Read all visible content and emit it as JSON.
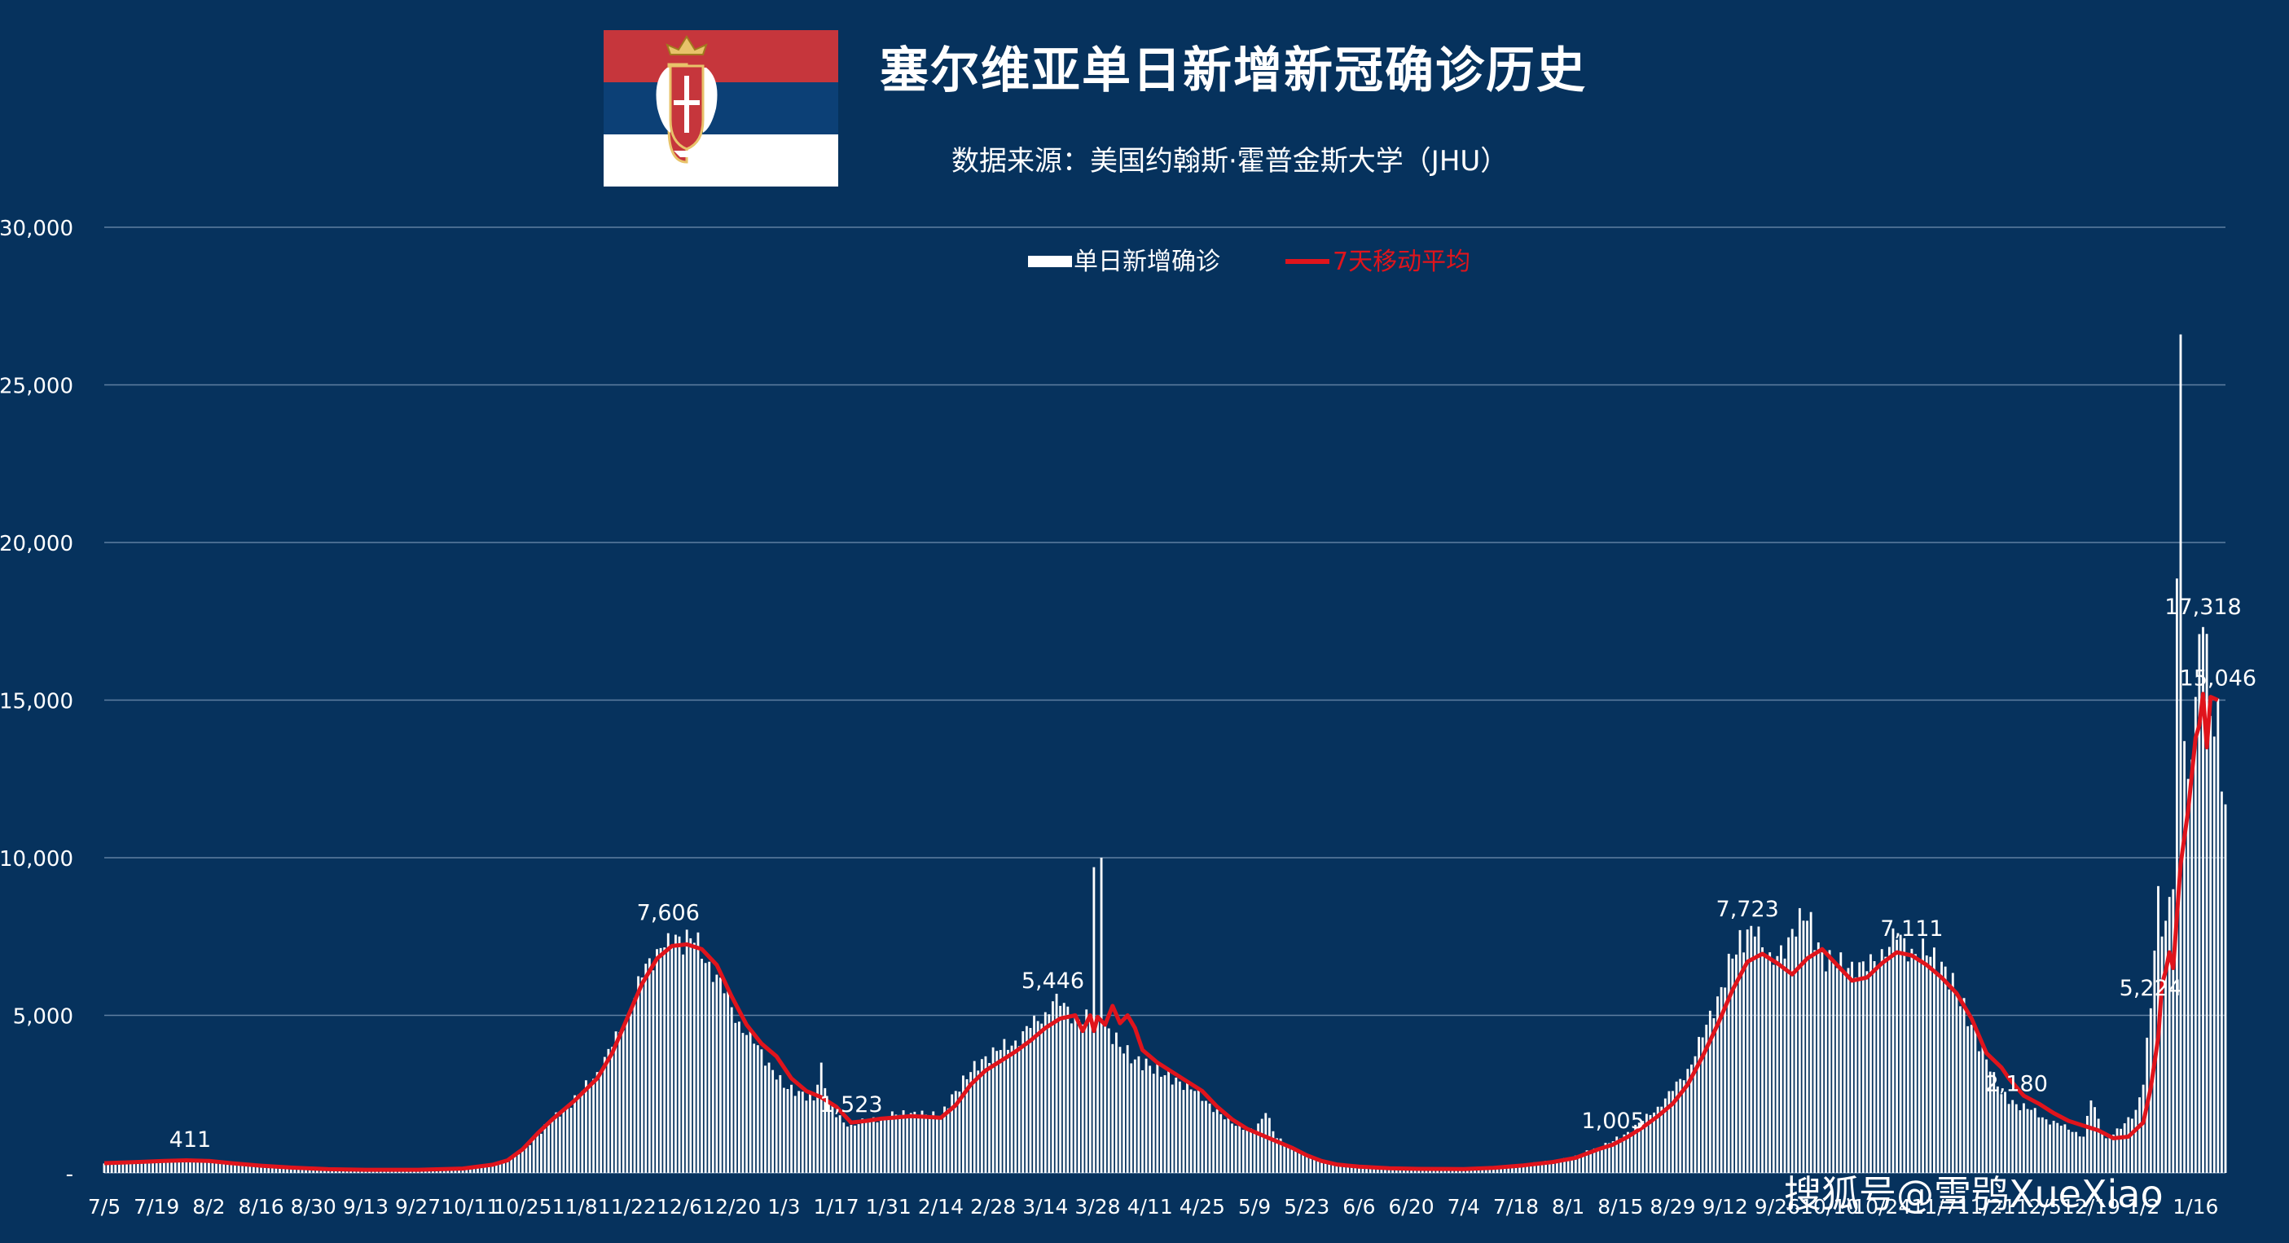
{
  "header": {
    "title": "塞尔维亚单日新增新冠确诊历史",
    "subtitle": "数据来源：美国约翰斯·霍普金斯大学（JHU）",
    "flag": "serbia-flag"
  },
  "legend": {
    "bars_label": "单日新增确诊",
    "line_label": "7天移动平均"
  },
  "watermark": "搜狐号@雪鸮XueXiao",
  "colors": {
    "background": "#06325d",
    "bars": "#ffffff",
    "moving_average": "#e0141c",
    "gridlines": "#5f7fa1"
  },
  "chart_data": {
    "type": "bar",
    "title": "塞尔维亚单日新增新冠确诊历史",
    "xlabel": "",
    "ylabel": "",
    "ylim": [
      0,
      30000
    ],
    "grid": true,
    "legend_position": "top-center",
    "y_ticks": [
      "-",
      "5,000",
      "10,000",
      "15,000",
      "20,000",
      "25,000",
      "30,000"
    ],
    "y_tick_values": [
      0,
      5000,
      10000,
      15000,
      20000,
      25000,
      30000
    ],
    "x_ticks": [
      "7/5",
      "7/19",
      "8/2",
      "8/16",
      "8/30",
      "9/13",
      "9/27",
      "10/11",
      "10/25",
      "11/8",
      "11/22",
      "12/6",
      "12/20",
      "1/3",
      "1/17",
      "1/31",
      "2/14",
      "2/28",
      "3/14",
      "3/28",
      "4/11",
      "4/25",
      "5/9",
      "5/23",
      "6/6",
      "6/20",
      "7/4",
      "7/18",
      "8/1",
      "8/15",
      "8/29",
      "9/12",
      "9/26",
      "10/10",
      "10/24",
      "11/7",
      "11/21",
      "12/5",
      "12/19",
      "1/2",
      "1/16"
    ],
    "x_tick_days": [
      0,
      14,
      28,
      42,
      56,
      70,
      84,
      98,
      112,
      126,
      140,
      154,
      168,
      182,
      196,
      210,
      224,
      238,
      252,
      266,
      280,
      294,
      308,
      322,
      336,
      350,
      364,
      378,
      392,
      406,
      420,
      434,
      448,
      462,
      476,
      490,
      504,
      518,
      532,
      546,
      560
    ],
    "x_range_days": [
      0,
      568
    ],
    "series": [
      {
        "name": "单日新增确诊",
        "kind": "bar",
        "points": [
          [
            0,
            300
          ],
          [
            5,
            320
          ],
          [
            10,
            360
          ],
          [
            15,
            390
          ],
          [
            20,
            400
          ],
          [
            23,
            411
          ],
          [
            26,
            380
          ],
          [
            30,
            330
          ],
          [
            35,
            280
          ],
          [
            40,
            240
          ],
          [
            45,
            200
          ],
          [
            50,
            160
          ],
          [
            55,
            130
          ],
          [
            60,
            110
          ],
          [
            65,
            95
          ],
          [
            70,
            100
          ],
          [
            75,
            105
          ],
          [
            80,
            100
          ],
          [
            85,
            95
          ],
          [
            90,
            110
          ],
          [
            95,
            140
          ],
          [
            100,
            200
          ],
          [
            104,
            280
          ],
          [
            108,
            420
          ],
          [
            112,
            700
          ],
          [
            116,
            1200
          ],
          [
            120,
            1700
          ],
          [
            124,
            2100
          ],
          [
            128,
            2600
          ],
          [
            132,
            3200
          ],
          [
            136,
            4000
          ],
          [
            140,
            5000
          ],
          [
            144,
            6200
          ],
          [
            148,
            7100
          ],
          [
            151,
            7606
          ],
          [
            154,
            7500
          ],
          [
            158,
            7300
          ],
          [
            162,
            6700
          ],
          [
            166,
            5700
          ],
          [
            170,
            4800
          ],
          [
            174,
            4100
          ],
          [
            178,
            3500
          ],
          [
            182,
            2700
          ],
          [
            186,
            2600
          ],
          [
            190,
            2300
          ],
          [
            192,
            3500
          ],
          [
            194,
            2200
          ],
          [
            198,
            1600
          ],
          [
            200,
            1523
          ],
          [
            204,
            1650
          ],
          [
            208,
            1750
          ],
          [
            212,
            1850
          ],
          [
            216,
            1900
          ],
          [
            220,
            1850
          ],
          [
            224,
            1800
          ],
          [
            228,
            2600
          ],
          [
            232,
            3200
          ],
          [
            236,
            3700
          ],
          [
            240,
            3900
          ],
          [
            244,
            4200
          ],
          [
            248,
            4600
          ],
          [
            252,
            5100
          ],
          [
            254,
            5446
          ],
          [
            256,
            5300
          ],
          [
            260,
            5000
          ],
          [
            264,
            4800
          ],
          [
            265,
            9700
          ],
          [
            266,
            4800
          ],
          [
            267,
            10000
          ],
          [
            268,
            4700
          ],
          [
            272,
            4000
          ],
          [
            276,
            3600
          ],
          [
            280,
            3400
          ],
          [
            284,
            3100
          ],
          [
            288,
            2900
          ],
          [
            292,
            2600
          ],
          [
            296,
            2200
          ],
          [
            300,
            1700
          ],
          [
            304,
            1500
          ],
          [
            308,
            1300
          ],
          [
            311,
            1900
          ],
          [
            314,
            1100
          ],
          [
            318,
            800
          ],
          [
            322,
            550
          ],
          [
            326,
            380
          ],
          [
            330,
            270
          ],
          [
            336,
            200
          ],
          [
            340,
            170
          ],
          [
            344,
            150
          ],
          [
            350,
            130
          ],
          [
            356,
            120
          ],
          [
            364,
            140
          ],
          [
            370,
            180
          ],
          [
            378,
            260
          ],
          [
            384,
            330
          ],
          [
            390,
            420
          ],
          [
            394,
            550
          ],
          [
            400,
            800
          ],
          [
            404,
            1005
          ],
          [
            408,
            1300
          ],
          [
            412,
            1650
          ],
          [
            416,
            2100
          ],
          [
            420,
            2600
          ],
          [
            424,
            3300
          ],
          [
            428,
            4300
          ],
          [
            432,
            5600
          ],
          [
            436,
            6800
          ],
          [
            440,
            7723
          ],
          [
            442,
            7500
          ],
          [
            446,
            7000
          ],
          [
            450,
            6800
          ],
          [
            454,
            8400
          ],
          [
            456,
            8000
          ],
          [
            460,
            7000
          ],
          [
            464,
            6500
          ],
          [
            468,
            6700
          ],
          [
            472,
            6400
          ],
          [
            476,
            7100
          ],
          [
            480,
            7400
          ],
          [
            484,
            7111
          ],
          [
            488,
            6900
          ],
          [
            492,
            6700
          ],
          [
            496,
            5700
          ],
          [
            500,
            4700
          ],
          [
            504,
            3600
          ],
          [
            506,
            3200
          ],
          [
            508,
            2500
          ],
          [
            512,
            2180
          ],
          [
            516,
            2000
          ],
          [
            520,
            1700
          ],
          [
            524,
            1500
          ],
          [
            528,
            1300
          ],
          [
            530,
            1150
          ],
          [
            532,
            2300
          ],
          [
            536,
            1100
          ],
          [
            540,
            1400
          ],
          [
            544,
            2000
          ],
          [
            546,
            2800
          ],
          [
            548,
            5224
          ],
          [
            550,
            9100
          ],
          [
            551,
            7500
          ],
          [
            552,
            8000
          ],
          [
            554,
            9000
          ],
          [
            556,
            26600
          ],
          [
            557,
            13700
          ],
          [
            558,
            12500
          ],
          [
            560,
            15100
          ],
          [
            562,
            17318
          ],
          [
            563,
            17100
          ],
          [
            564,
            14500
          ],
          [
            566,
            15046
          ],
          [
            567,
            12100
          ]
        ]
      },
      {
        "name": "7天移动平均",
        "kind": "line",
        "points": [
          [
            0,
            310
          ],
          [
            8,
            340
          ],
          [
            16,
            380
          ],
          [
            22,
            400
          ],
          [
            28,
            380
          ],
          [
            34,
            310
          ],
          [
            42,
            230
          ],
          [
            50,
            170
          ],
          [
            60,
            120
          ],
          [
            70,
            100
          ],
          [
            84,
            100
          ],
          [
            96,
            140
          ],
          [
            104,
            260
          ],
          [
            108,
            400
          ],
          [
            112,
            750
          ],
          [
            116,
            1250
          ],
          [
            120,
            1700
          ],
          [
            126,
            2300
          ],
          [
            132,
            3000
          ],
          [
            136,
            3800
          ],
          [
            140,
            4900
          ],
          [
            144,
            6000
          ],
          [
            148,
            6800
          ],
          [
            152,
            7200
          ],
          [
            156,
            7250
          ],
          [
            160,
            7100
          ],
          [
            164,
            6600
          ],
          [
            168,
            5600
          ],
          [
            172,
            4700
          ],
          [
            176,
            4100
          ],
          [
            180,
            3700
          ],
          [
            184,
            3000
          ],
          [
            188,
            2600
          ],
          [
            192,
            2400
          ],
          [
            196,
            2100
          ],
          [
            200,
            1600
          ],
          [
            204,
            1650
          ],
          [
            208,
            1720
          ],
          [
            212,
            1760
          ],
          [
            216,
            1800
          ],
          [
            220,
            1780
          ],
          [
            224,
            1750
          ],
          [
            228,
            2150
          ],
          [
            232,
            2800
          ],
          [
            236,
            3250
          ],
          [
            240,
            3550
          ],
          [
            244,
            3850
          ],
          [
            248,
            4200
          ],
          [
            252,
            4600
          ],
          [
            256,
            4900
          ],
          [
            260,
            5000
          ],
          [
            262,
            4500
          ],
          [
            264,
            5000
          ],
          [
            265,
            4500
          ],
          [
            266,
            4950
          ],
          [
            268,
            4700
          ],
          [
            270,
            5300
          ],
          [
            272,
            4750
          ],
          [
            274,
            5000
          ],
          [
            276,
            4600
          ],
          [
            278,
            3900
          ],
          [
            282,
            3500
          ],
          [
            286,
            3200
          ],
          [
            290,
            2900
          ],
          [
            294,
            2600
          ],
          [
            298,
            2100
          ],
          [
            302,
            1700
          ],
          [
            306,
            1400
          ],
          [
            310,
            1200
          ],
          [
            314,
            1000
          ],
          [
            318,
            800
          ],
          [
            322,
            560
          ],
          [
            326,
            380
          ],
          [
            330,
            270
          ],
          [
            336,
            200
          ],
          [
            344,
            150
          ],
          [
            352,
            130
          ],
          [
            364,
            125
          ],
          [
            372,
            160
          ],
          [
            380,
            240
          ],
          [
            388,
            350
          ],
          [
            394,
            480
          ],
          [
            400,
            750
          ],
          [
            404,
            900
          ],
          [
            408,
            1150
          ],
          [
            412,
            1450
          ],
          [
            416,
            1800
          ],
          [
            420,
            2200
          ],
          [
            424,
            2800
          ],
          [
            428,
            3700
          ],
          [
            432,
            4700
          ],
          [
            436,
            5800
          ],
          [
            440,
            6700
          ],
          [
            444,
            6950
          ],
          [
            448,
            6650
          ],
          [
            452,
            6300
          ],
          [
            456,
            6800
          ],
          [
            460,
            7100
          ],
          [
            464,
            6600
          ],
          [
            468,
            6100
          ],
          [
            472,
            6200
          ],
          [
            476,
            6650
          ],
          [
            480,
            7000
          ],
          [
            484,
            6900
          ],
          [
            488,
            6600
          ],
          [
            492,
            6200
          ],
          [
            496,
            5700
          ],
          [
            500,
            4900
          ],
          [
            504,
            3800
          ],
          [
            508,
            3350
          ],
          [
            510,
            3000
          ],
          [
            514,
            2450
          ],
          [
            518,
            2200
          ],
          [
            522,
            1900
          ],
          [
            526,
            1650
          ],
          [
            530,
            1500
          ],
          [
            534,
            1350
          ],
          [
            538,
            1100
          ],
          [
            542,
            1150
          ],
          [
            546,
            1600
          ],
          [
            548,
            2700
          ],
          [
            550,
            4300
          ],
          [
            551,
            6000
          ],
          [
            552,
            6400
          ],
          [
            553,
            7000
          ],
          [
            554,
            6500
          ],
          [
            556,
            9800
          ],
          [
            558,
            11500
          ],
          [
            560,
            13800
          ],
          [
            561,
            14200
          ],
          [
            562,
            15200
          ],
          [
            563,
            13500
          ],
          [
            564,
            15100
          ],
          [
            566,
            15000
          ]
        ]
      }
    ],
    "annotations": [
      {
        "text": "411",
        "day": 23,
        "value": 411
      },
      {
        "text": "7,606",
        "day": 151,
        "value": 7606
      },
      {
        "text": "1,523",
        "day": 200,
        "value": 1523
      },
      {
        "text": "5,446",
        "day": 254,
        "value": 5446
      },
      {
        "text": "1,005",
        "day": 404,
        "value": 1005
      },
      {
        "text": "7,723",
        "day": 440,
        "value": 7723
      },
      {
        "text": "7,111",
        "day": 484,
        "value": 7111
      },
      {
        "text": "2,180",
        "day": 512,
        "value": 2180
      },
      {
        "text": "5,224",
        "day": 548,
        "value": 5224
      },
      {
        "text": "17,318",
        "day": 562,
        "value": 17318
      },
      {
        "text": "15,046",
        "day": 566,
        "value": 15046
      }
    ]
  }
}
